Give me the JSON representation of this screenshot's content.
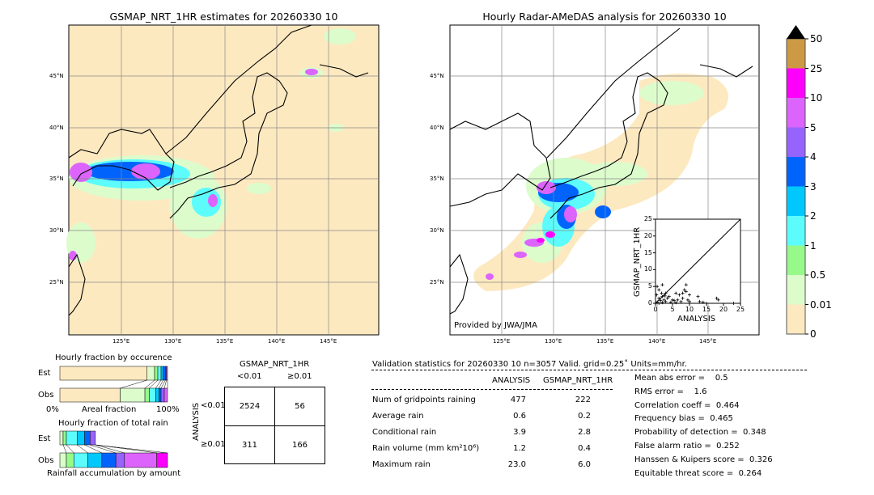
{
  "left_map": {
    "title": "GSMAP_NRT_1HR estimates for 20260330 10"
  },
  "right_map": {
    "title": "Hourly Radar-AMeDAS analysis for 20260330 10",
    "credit": "Provided by JWA/JMA"
  },
  "lat_labels": [
    "45°N",
    "40°N",
    "35°N",
    "30°N",
    "25°N"
  ],
  "lon_labels": [
    "125°E",
    "130°E",
    "135°E",
    "140°E",
    "145°E"
  ],
  "colorbar": {
    "labels": [
      "0",
      "0.01",
      "0.5",
      "1",
      "2",
      "3",
      "4",
      "5",
      "10",
      "25",
      "50"
    ],
    "colors": [
      "#fde9c0",
      "#dcfccc",
      "#96f98a",
      "#5cfcfc",
      "#00c8fc",
      "#0064fc",
      "#9664fc",
      "#dc64fc",
      "#fc00fc",
      "#cc9a44"
    ],
    "extend_color": "#000000"
  },
  "chart_data": {
    "type": "scatter",
    "xlabel": "ANALYSIS",
    "ylabel": "GSMAP_NRT_1HR",
    "xlim": [
      0,
      25
    ],
    "ylim": [
      0,
      25
    ],
    "xticks": [
      "0",
      "5",
      "10",
      "15",
      "20",
      "25"
    ],
    "yticks": [
      "0",
      "5",
      "10",
      "15",
      "20",
      "25"
    ],
    "diagonal": true,
    "points": [
      [
        0.5,
        0.3
      ],
      [
        1,
        1.5
      ],
      [
        1.5,
        0.8
      ],
      [
        2,
        2
      ],
      [
        2.5,
        1
      ],
      [
        3,
        0.5
      ],
      [
        1,
        4
      ],
      [
        2,
        5.5
      ],
      [
        0.5,
        5
      ],
      [
        3,
        3
      ],
      [
        4,
        2
      ],
      [
        5,
        1
      ],
      [
        6,
        3
      ],
      [
        6.5,
        1
      ],
      [
        7,
        2.5
      ],
      [
        8,
        3
      ],
      [
        8.5,
        4
      ],
      [
        9,
        3.5
      ],
      [
        9,
        5.5
      ],
      [
        9.5,
        1
      ],
      [
        10,
        2.5
      ],
      [
        10,
        0.5
      ],
      [
        12.5,
        2
      ],
      [
        13,
        0.5
      ],
      [
        14,
        0.3
      ],
      [
        15,
        0
      ],
      [
        18,
        1.5
      ],
      [
        18.5,
        1
      ],
      [
        23,
        0
      ],
      [
        1,
        0
      ],
      [
        2,
        0.2
      ],
      [
        3.5,
        1.5
      ],
      [
        4.5,
        0.3
      ],
      [
        0.3,
        2.5
      ],
      [
        1.8,
        3
      ],
      [
        2.8,
        2.2
      ],
      [
        5.5,
        0.8
      ],
      [
        7.5,
        0.5
      ],
      [
        8,
        1.5
      ],
      [
        6,
        0.2
      ]
    ]
  },
  "occurrence_chart": {
    "title": "Hourly fraction by occurence",
    "xlabel": "Areal fraction",
    "x_left": "0%",
    "x_right": "100%",
    "rows": [
      {
        "label": "Est",
        "fractions": [
          0.81,
          0.07,
          0.03,
          0.03,
          0.02,
          0.02,
          0.01,
          0.01
        ]
      },
      {
        "label": "Obs",
        "fractions": [
          0.56,
          0.23,
          0.04,
          0.06,
          0.03,
          0.02,
          0.03,
          0.03
        ]
      }
    ]
  },
  "total_rain_chart": {
    "title": "Hourly fraction of total rain",
    "xlabel": "Rainfall accumulation by amount",
    "rows": [
      {
        "label": "Est",
        "fractions": [
          0.03,
          0.03,
          0.1,
          0.07,
          0.05,
          0.05,
          0,
          0
        ]
      },
      {
        "label": "Obs",
        "fractions": [
          0.06,
          0.07,
          0.13,
          0.13,
          0.13,
          0.08,
          0.3,
          0.1
        ]
      }
    ]
  },
  "contingency": {
    "title": "GSMAP_NRT_1HR",
    "col_labels": [
      "<0.01",
      "≥0.01"
    ],
    "row_axis": "ANALYSIS",
    "row_labels": [
      "<0.01",
      "≥0.01"
    ],
    "cells": [
      [
        "2524",
        "56"
      ],
      [
        "311",
        "166"
      ]
    ]
  },
  "stats": {
    "header": "Validation statistics for 20260330 10  n=3057 Valid. grid=0.25˚ Units=mm/hr.",
    "col_headers": [
      "ANALYSIS",
      "GSMAP_NRT_1HR"
    ],
    "rows": [
      {
        "label": "Num of gridpoints raining",
        "analysis": "477",
        "gsmap": "222"
      },
      {
        "label": "Average rain",
        "analysis": "0.6",
        "gsmap": "0.2"
      },
      {
        "label": "Conditional rain",
        "analysis": "3.9",
        "gsmap": "2.8"
      },
      {
        "label": "Rain volume (mm km²10⁶)",
        "analysis": "1.2",
        "gsmap": "0.4"
      },
      {
        "label": "Maximum rain",
        "analysis": "23.0",
        "gsmap": "6.0"
      }
    ],
    "scores": [
      "Mean abs error =    0.5",
      "RMS error =    1.6",
      "Correlation coeff =  0.464",
      "Frequency bias =  0.465",
      "Probability of detection =  0.348",
      "False alarm ratio =  0.252",
      "Hanssen & Kuipers score =  0.326",
      "Equitable threat score =  0.264"
    ]
  }
}
